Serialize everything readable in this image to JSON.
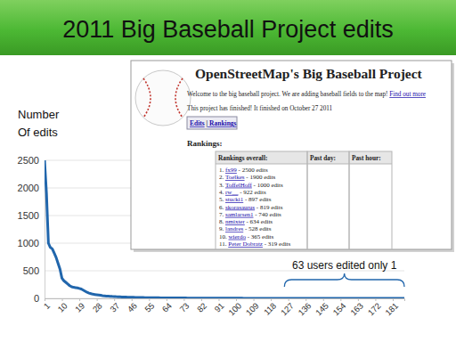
{
  "chart_data": {
    "type": "line",
    "title": "2011 Big Baseball Project edits",
    "ylabel": [
      "Number",
      "Of edits"
    ],
    "color": "#2166ac",
    "grid": true,
    "x": [
      1,
      2,
      3,
      4,
      5,
      6,
      7,
      8,
      9,
      10,
      11,
      12,
      13,
      14,
      15,
      16,
      17,
      18,
      19,
      20,
      21,
      22,
      23,
      24,
      25,
      26,
      27,
      28,
      29,
      30,
      31,
      32,
      33,
      34,
      35,
      36,
      37,
      38,
      39,
      40,
      41,
      42,
      43,
      44,
      45,
      46,
      47,
      48,
      49,
      50,
      51,
      52,
      53,
      54,
      55,
      56,
      57,
      58,
      59,
      60,
      61,
      62,
      63,
      64,
      65,
      66,
      67,
      68,
      69,
      70,
      71,
      72,
      73,
      74,
      75,
      76,
      77,
      78,
      79,
      80,
      81,
      82,
      83,
      84,
      85,
      86,
      87,
      88,
      89,
      90,
      91,
      92,
      93,
      94,
      95,
      96,
      97,
      98,
      99,
      100,
      101,
      102,
      103,
      104,
      105,
      106,
      107,
      108,
      109,
      110,
      111,
      112,
      113,
      114,
      115,
      116,
      117,
      118,
      119,
      120,
      121,
      122,
      123,
      124,
      125,
      126,
      127,
      128,
      129,
      130,
      131,
      132,
      133,
      134,
      135,
      136,
      137,
      138,
      139,
      140,
      141,
      142,
      143,
      144,
      145,
      146,
      147,
      148,
      149,
      150,
      151,
      152,
      153,
      154,
      155,
      156,
      157,
      158,
      159,
      160,
      161,
      162,
      163,
      164,
      165,
      166,
      167,
      168,
      169,
      170,
      171,
      172,
      173,
      174,
      175,
      176,
      177,
      178,
      179,
      180,
      181,
      182,
      183,
      184,
      185,
      186,
      187
    ],
    "values": [
      2500,
      1900,
      1000,
      922,
      897,
      819,
      740,
      634,
      528,
      365,
      319,
      290,
      260,
      230,
      210,
      200,
      195,
      190,
      180,
      170,
      150,
      130,
      110,
      95,
      85,
      75,
      70,
      65,
      60,
      55,
      50,
      46,
      42,
      40,
      38,
      35,
      33,
      31,
      30,
      28,
      26,
      25,
      24,
      22,
      21,
      20,
      19,
      18,
      17,
      16,
      15,
      15,
      14,
      14,
      13,
      13,
      12,
      12,
      11,
      11,
      10,
      10,
      10,
      9,
      9,
      9,
      8,
      8,
      8,
      8,
      7,
      7,
      7,
      7,
      6,
      6,
      6,
      6,
      6,
      5,
      5,
      5,
      5,
      5,
      5,
      4,
      4,
      4,
      4,
      4,
      4,
      4,
      4,
      3,
      3,
      3,
      3,
      3,
      3,
      3,
      3,
      3,
      3,
      2,
      2,
      2,
      2,
      2,
      2,
      2,
      2,
      2,
      2,
      2,
      2,
      2,
      2,
      2,
      2,
      2,
      2,
      2,
      2,
      2,
      1,
      1,
      1,
      1,
      1,
      1,
      1,
      1,
      1,
      1,
      1,
      1,
      1,
      1,
      1,
      1,
      1,
      1,
      1,
      1,
      1,
      1,
      1,
      1,
      1,
      1,
      1,
      1,
      1,
      1,
      1,
      1,
      1,
      1,
      1,
      1,
      1,
      1,
      1,
      1,
      1,
      1,
      1,
      1,
      1,
      1,
      1,
      1,
      1,
      1,
      1,
      1,
      1,
      1,
      1,
      1,
      1,
      1,
      1,
      1,
      1,
      1,
      1
    ],
    "xlim": [
      1,
      187
    ],
    "xticks": [
      1,
      10,
      19,
      28,
      37,
      46,
      55,
      64,
      73,
      82,
      91,
      100,
      109,
      118,
      127,
      136,
      145,
      154,
      163,
      172,
      181
    ],
    "ylim": [
      0,
      2500
    ],
    "yticks": [
      0,
      500,
      1000,
      1500,
      2000,
      2500
    ],
    "annotations": [
      {
        "text": "63 users edited only 1",
        "x_from": 125,
        "x_to": 187
      }
    ]
  },
  "inset": {
    "heading": "OpenStreetMap's Big Baseball Project",
    "welcome": "Welcome to the big baseball project. We are adding baseball fields to the map! ",
    "link": "Find out more",
    "finished": "This project has finished! It finished on October 27 2011",
    "tabs": [
      "Edits",
      "|",
      "Rankings"
    ],
    "rankings_heading": "Rankings:",
    "columns": [
      "Rankings overall:",
      "Past day:",
      "Past hour:"
    ],
    "rankings": [
      {
        "rank": "1.",
        "user": "fx99",
        "edits": " - 2500 edits"
      },
      {
        "rank": "2.",
        "user": "Toelkes",
        "edits": " - 1900 edits"
      },
      {
        "rank": "3.",
        "user": "ToffelHoff",
        "edits": " - 1000 edits"
      },
      {
        "rank": "4.",
        "user": "rw__",
        "edits": " - 922 edits"
      },
      {
        "rank": "5.",
        "user": "stucki1",
        "edits": " - 897 edits"
      },
      {
        "rank": "6.",
        "user": "skorasaurus",
        "edits": " - 819 edits"
      },
      {
        "rank": "7.",
        "user": "samlarsen1",
        "edits": " - 740 edits"
      },
      {
        "rank": "8.",
        "user": "nmixter",
        "edits": " - 634 edits"
      },
      {
        "rank": "9.",
        "user": "landres",
        "edits": " - 528 edits"
      },
      {
        "rank": "10.",
        "user": "wierdo",
        "edits": " - 365 edits"
      },
      {
        "rank": "11.",
        "user": "Peter Dobratz",
        "edits": " - 319 edits"
      }
    ]
  }
}
